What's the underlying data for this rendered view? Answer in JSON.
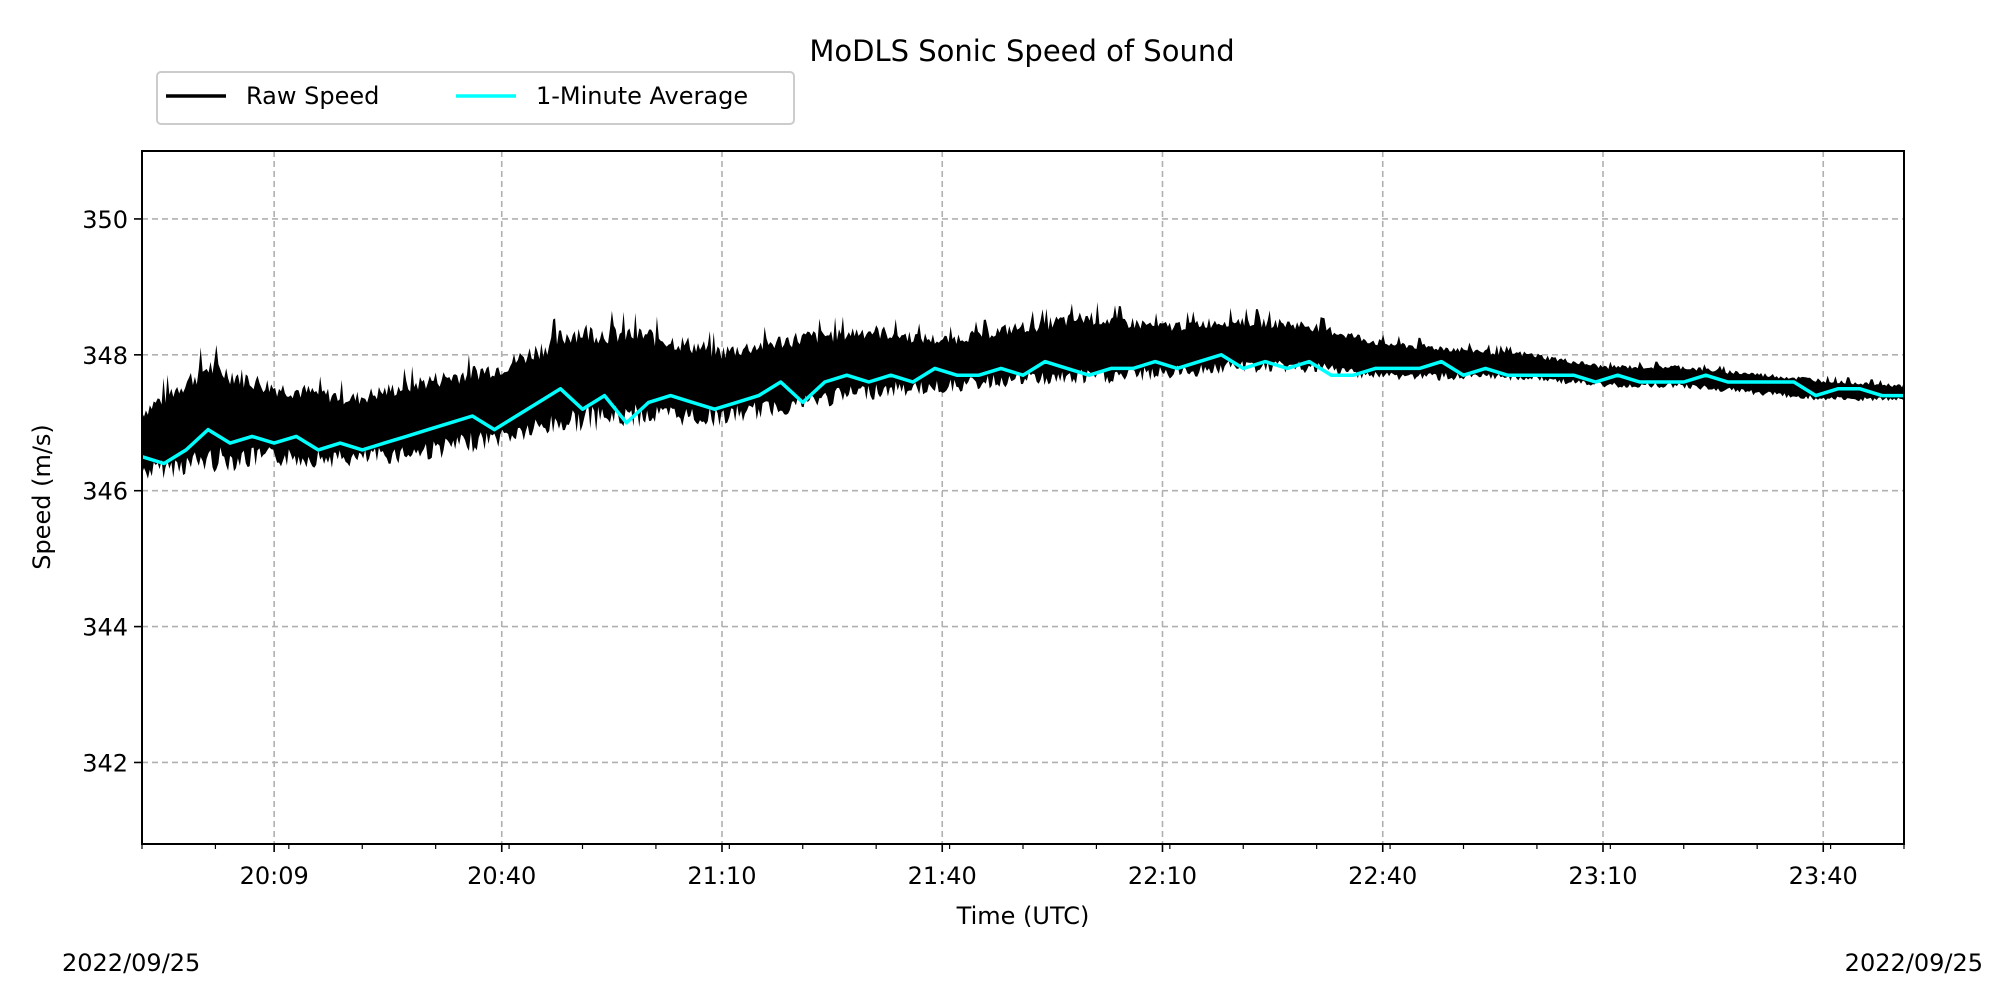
{
  "chart_data": {
    "type": "line",
    "title": "MoDLS Sonic Speed of Sound",
    "xlabel": "Time (UTC)",
    "ylabel": "Speed (m/s)",
    "x_unit": "time of day (HH:MM, UTC)",
    "xlim": [
      "19:51",
      "23:51"
    ],
    "ylim": [
      340.8,
      351
    ],
    "x_ticks": [
      "20:09",
      "20:40",
      "21:10",
      "21:40",
      "22:10",
      "22:40",
      "23:10",
      "23:40"
    ],
    "y_ticks": [
      342,
      344,
      346,
      348,
      350
    ],
    "start_date": "2022/09/25",
    "end_date": "2022/09/25",
    "grid": true,
    "grid_style": "dashed",
    "legend_position": "top-left, above plot",
    "colors": {
      "raw": "#000000",
      "average": "#00FFFF"
    },
    "series": [
      {
        "name": "Raw Speed",
        "kind": "band",
        "color": "#000000",
        "x": [
          "19:51",
          "20:00",
          "20:09",
          "20:20",
          "20:30",
          "20:40",
          "20:50",
          "21:00",
          "21:10",
          "21:20",
          "21:30",
          "21:40",
          "21:50",
          "22:00",
          "22:10",
          "22:20",
          "22:30",
          "22:40",
          "22:50",
          "23:00",
          "23:10",
          "23:20",
          "23:30",
          "23:40",
          "23:51"
        ],
        "low": [
          346.1,
          346.2,
          346.3,
          346.3,
          346.4,
          346.6,
          346.8,
          346.9,
          346.9,
          347.1,
          347.3,
          347.4,
          347.5,
          347.5,
          347.6,
          347.7,
          347.7,
          347.6,
          347.6,
          347.6,
          347.5,
          347.5,
          347.4,
          347.3,
          347.3
        ],
        "high": [
          347.4,
          348.2,
          347.8,
          347.6,
          347.9,
          348.1,
          348.7,
          348.6,
          348.3,
          348.5,
          348.6,
          348.4,
          348.6,
          348.8,
          348.6,
          348.7,
          348.6,
          348.3,
          348.2,
          348.1,
          347.9,
          347.9,
          347.8,
          347.7,
          347.6
        ]
      },
      {
        "name": "1-Minute Average",
        "kind": "line",
        "color": "#00FFFF",
        "x": [
          "19:51",
          "19:54",
          "19:57",
          "20:00",
          "20:03",
          "20:06",
          "20:09",
          "20:12",
          "20:15",
          "20:18",
          "20:21",
          "20:24",
          "20:27",
          "20:30",
          "20:33",
          "20:36",
          "20:39",
          "20:42",
          "20:45",
          "20:48",
          "20:51",
          "20:54",
          "20:57",
          "21:00",
          "21:03",
          "21:06",
          "21:09",
          "21:12",
          "21:15",
          "21:18",
          "21:21",
          "21:24",
          "21:27",
          "21:30",
          "21:33",
          "21:36",
          "21:39",
          "21:42",
          "21:45",
          "21:48",
          "21:51",
          "21:54",
          "21:57",
          "22:00",
          "22:03",
          "22:06",
          "22:09",
          "22:12",
          "22:15",
          "22:18",
          "22:21",
          "22:24",
          "22:27",
          "22:30",
          "22:33",
          "22:36",
          "22:39",
          "22:42",
          "22:45",
          "22:48",
          "22:51",
          "22:54",
          "22:57",
          "23:00",
          "23:03",
          "23:06",
          "23:09",
          "23:12",
          "23:15",
          "23:18",
          "23:21",
          "23:24",
          "23:27",
          "23:30",
          "23:33",
          "23:36",
          "23:39",
          "23:42",
          "23:45",
          "23:48",
          "23:51"
        ],
        "values": [
          346.5,
          346.4,
          346.6,
          346.9,
          346.7,
          346.8,
          346.7,
          346.8,
          346.6,
          346.7,
          346.6,
          346.7,
          346.8,
          346.9,
          347.0,
          347.1,
          346.9,
          347.1,
          347.3,
          347.5,
          347.2,
          347.4,
          347.0,
          347.3,
          347.4,
          347.3,
          347.2,
          347.3,
          347.4,
          347.6,
          347.3,
          347.6,
          347.7,
          347.6,
          347.7,
          347.6,
          347.8,
          347.7,
          347.7,
          347.8,
          347.7,
          347.9,
          347.8,
          347.7,
          347.8,
          347.8,
          347.9,
          347.8,
          347.9,
          348.0,
          347.8,
          347.9,
          347.8,
          347.9,
          347.7,
          347.7,
          347.8,
          347.8,
          347.8,
          347.9,
          347.7,
          347.8,
          347.7,
          347.7,
          347.7,
          347.7,
          347.6,
          347.7,
          347.6,
          347.6,
          347.6,
          347.7,
          347.6,
          347.6,
          347.6,
          347.6,
          347.4,
          347.5,
          347.5,
          347.4,
          347.4
        ]
      }
    ]
  }
}
